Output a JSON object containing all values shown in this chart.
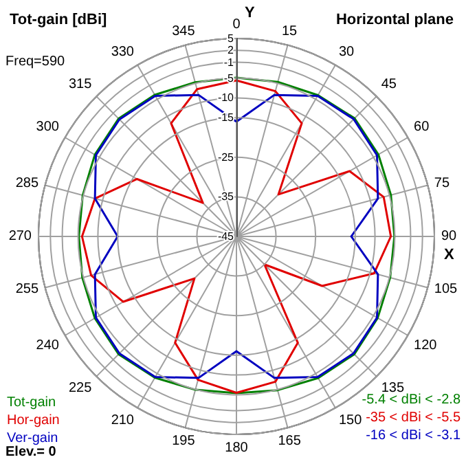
{
  "chart_data": {
    "type": "radar",
    "title": "Tot-gain [dBi]",
    "subtitle": "Horizontal plane",
    "xlabel": "X",
    "ylabel": "Y",
    "annotations": [
      "Freq=590",
      "Elev.= 0",
      "-5.4 < dBi < -2.8",
      "-35 < dBi < -5.5",
      "-16 < dBi < -3.1"
    ],
    "categories": [
      "0",
      "15",
      "30",
      "45",
      "60",
      "75",
      "90",
      "105",
      "120",
      "135",
      "150",
      "165",
      "180",
      "195",
      "210",
      "225",
      "240",
      "255",
      "270",
      "285",
      "300",
      "315",
      "330",
      "345"
    ],
    "ylim": [
      -45,
      5
    ],
    "yticks": [
      5,
      2,
      -1,
      -5,
      -10,
      -15,
      -25,
      -35,
      -45
    ],
    "grid": true,
    "legend": "bottom left",
    "marker": "none",
    "line_style": "solid",
    "series": [
      {
        "name": "Tot-gain",
        "color": "#008000",
        "values": [
          -4.9,
          -4.6,
          -3.8,
          -2.8,
          -3.6,
          -4.6,
          -5.1,
          -4.8,
          -3.8,
          -2.9,
          -3.7,
          -4.8,
          -5.4,
          -4.9,
          -3.8,
          -2.9,
          -3.7,
          -4.7,
          -5.2,
          -4.8,
          -3.7,
          -2.9,
          -3.7,
          -4.7
        ]
      },
      {
        "name": "Hor-gain",
        "color": "#e00000",
        "values": [
          -5.6,
          -7,
          -12,
          -30,
          -12,
          -6.5,
          -6,
          -9,
          -20,
          -35,
          -14,
          -7,
          -5.5,
          -7.5,
          -14,
          -30,
          -12,
          -7,
          -6,
          -8,
          -16,
          -33,
          -12,
          -6.5
        ]
      },
      {
        "name": "Ver-gain",
        "color": "#0000c0",
        "values": [
          -16,
          -8,
          -4,
          -3.1,
          -4,
          -8,
          -16,
          -8,
          -4,
          -3.2,
          -4,
          -8,
          -16,
          -8,
          -4,
          -3.2,
          -4,
          -8,
          -15,
          -8,
          -4,
          -3.2,
          -4,
          -8
        ]
      }
    ]
  }
}
